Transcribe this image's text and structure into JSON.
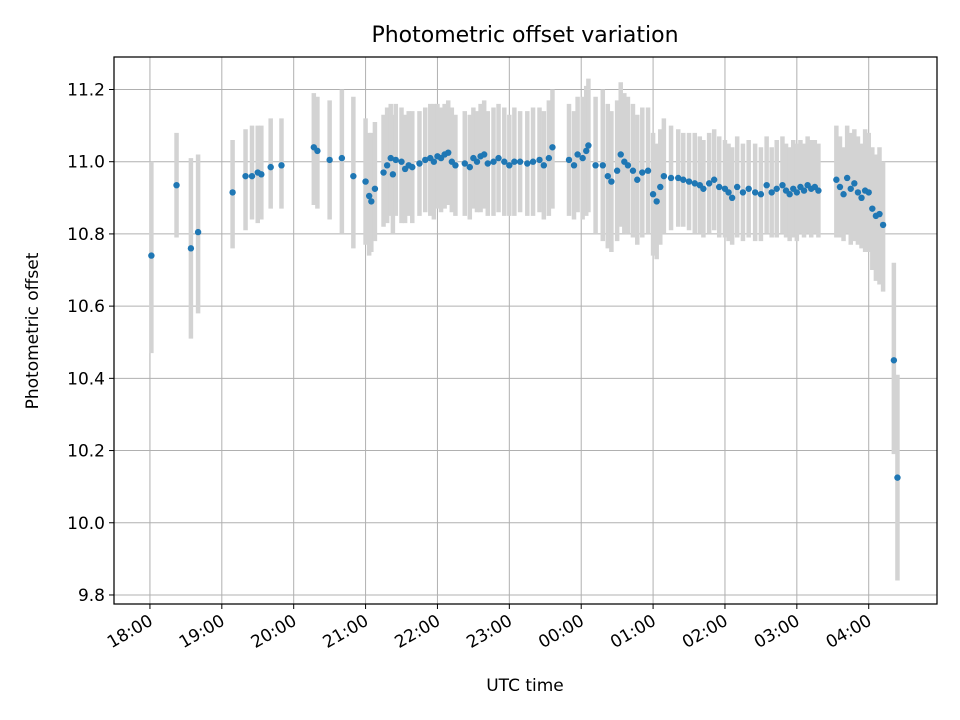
{
  "chart_data": {
    "type": "scatter",
    "title": "Photometric offset variation",
    "xlabel": "UTC time",
    "ylabel": "Photometric offset",
    "x_unit": "hours since 18:00 UTC",
    "xlim": [
      -0.5,
      10.95
    ],
    "ylim": [
      9.775,
      11.29
    ],
    "grid": true,
    "colors": {
      "points": "#1f77b4",
      "errorbars": "#d3d3d3",
      "grid": "#b0b0b0"
    },
    "xticks": [
      {
        "value": 0,
        "label": "18:00"
      },
      {
        "value": 1,
        "label": "19:00"
      },
      {
        "value": 2,
        "label": "20:00"
      },
      {
        "value": 3,
        "label": "21:00"
      },
      {
        "value": 4,
        "label": "22:00"
      },
      {
        "value": 5,
        "label": "23:00"
      },
      {
        "value": 6,
        "label": "00:00"
      },
      {
        "value": 7,
        "label": "01:00"
      },
      {
        "value": 8,
        "label": "02:00"
      },
      {
        "value": 9,
        "label": "03:00"
      },
      {
        "value": 10,
        "label": "04:00"
      }
    ],
    "yticks": [
      {
        "value": 9.8,
        "label": "9.8"
      },
      {
        "value": 10.0,
        "label": "10.0"
      },
      {
        "value": 10.2,
        "label": "10.2"
      },
      {
        "value": 10.4,
        "label": "10.4"
      },
      {
        "value": 10.6,
        "label": "10.6"
      },
      {
        "value": 10.8,
        "label": "10.8"
      },
      {
        "value": 11.0,
        "label": "11.0"
      },
      {
        "value": 11.2,
        "label": "11.2"
      }
    ],
    "points": [
      [
        0.02,
        10.74,
        10.47,
        11.0
      ],
      [
        0.37,
        10.935,
        10.79,
        11.08
      ],
      [
        0.57,
        10.76,
        10.51,
        11.01
      ],
      [
        0.67,
        10.805,
        10.58,
        11.02
      ],
      [
        1.15,
        10.915,
        10.76,
        11.06
      ],
      [
        1.33,
        10.96,
        10.81,
        11.09
      ],
      [
        1.42,
        10.96,
        10.84,
        11.1
      ],
      [
        1.5,
        10.97,
        10.83,
        11.1
      ],
      [
        1.55,
        10.965,
        10.84,
        11.1
      ],
      [
        1.68,
        10.985,
        10.87,
        11.12
      ],
      [
        1.83,
        10.99,
        10.87,
        11.12
      ],
      [
        2.28,
        11.04,
        10.88,
        11.19
      ],
      [
        2.33,
        11.03,
        10.87,
        11.18
      ],
      [
        2.5,
        11.005,
        10.84,
        11.17
      ],
      [
        2.67,
        11.01,
        10.8,
        11.2
      ],
      [
        2.83,
        10.96,
        10.76,
        11.18
      ],
      [
        3.0,
        10.945,
        10.77,
        11.12
      ],
      [
        3.05,
        10.905,
        10.74,
        11.08
      ],
      [
        3.08,
        10.89,
        10.75,
        11.08
      ],
      [
        3.13,
        10.925,
        10.78,
        11.11
      ],
      [
        3.25,
        10.97,
        10.82,
        11.13
      ],
      [
        3.3,
        10.99,
        10.83,
        11.15
      ],
      [
        3.35,
        11.01,
        10.85,
        11.16
      ],
      [
        3.38,
        10.965,
        10.8,
        11.13
      ],
      [
        3.42,
        11.005,
        10.85,
        11.16
      ],
      [
        3.5,
        11.0,
        10.83,
        11.15
      ],
      [
        3.55,
        10.98,
        10.83,
        11.13
      ],
      [
        3.6,
        10.99,
        10.85,
        11.14
      ],
      [
        3.65,
        10.985,
        10.83,
        11.14
      ],
      [
        3.75,
        10.995,
        10.85,
        11.14
      ],
      [
        3.83,
        11.005,
        10.86,
        11.15
      ],
      [
        3.9,
        11.01,
        10.85,
        11.16
      ],
      [
        3.95,
        11.0,
        10.84,
        11.16
      ],
      [
        4.0,
        11.015,
        10.87,
        11.16
      ],
      [
        4.05,
        11.01,
        10.86,
        11.15
      ],
      [
        4.1,
        11.02,
        10.87,
        11.16
      ],
      [
        4.15,
        11.025,
        10.88,
        11.17
      ],
      [
        4.2,
        11.0,
        10.86,
        11.15
      ],
      [
        4.25,
        10.99,
        10.85,
        11.13
      ],
      [
        4.38,
        10.995,
        10.85,
        11.14
      ],
      [
        4.45,
        10.985,
        10.84,
        11.13
      ],
      [
        4.5,
        11.01,
        10.87,
        11.15
      ],
      [
        4.55,
        11.0,
        10.86,
        11.14
      ],
      [
        4.6,
        11.015,
        10.86,
        11.16
      ],
      [
        4.65,
        11.02,
        10.87,
        11.17
      ],
      [
        4.7,
        10.995,
        10.85,
        11.14
      ],
      [
        4.78,
        11.0,
        10.85,
        11.15
      ],
      [
        4.85,
        11.01,
        10.86,
        11.16
      ],
      [
        4.93,
        11.0,
        10.85,
        11.15
      ],
      [
        5.0,
        10.99,
        10.85,
        11.13
      ],
      [
        5.07,
        11.0,
        10.85,
        11.15
      ],
      [
        5.15,
        11.0,
        10.86,
        11.14
      ],
      [
        5.25,
        10.995,
        10.85,
        11.14
      ],
      [
        5.33,
        11.0,
        10.85,
        11.15
      ],
      [
        5.42,
        11.005,
        10.86,
        11.15
      ],
      [
        5.48,
        10.99,
        10.84,
        11.14
      ],
      [
        5.55,
        11.01,
        10.85,
        11.17
      ],
      [
        5.6,
        11.04,
        10.87,
        11.2
      ],
      [
        5.83,
        11.005,
        10.85,
        11.16
      ],
      [
        5.9,
        10.99,
        10.84,
        11.14
      ],
      [
        5.95,
        11.02,
        10.86,
        11.18
      ],
      [
        6.02,
        11.01,
        10.84,
        11.18
      ],
      [
        6.07,
        11.03,
        10.85,
        11.21
      ],
      [
        6.1,
        11.045,
        10.86,
        11.23
      ],
      [
        6.2,
        10.99,
        10.8,
        11.18
      ],
      [
        6.3,
        10.99,
        10.78,
        11.2
      ],
      [
        6.37,
        10.96,
        10.76,
        11.16
      ],
      [
        6.42,
        10.945,
        10.75,
        11.14
      ],
      [
        6.5,
        10.975,
        10.78,
        11.17
      ],
      [
        6.55,
        11.02,
        10.82,
        11.22
      ],
      [
        6.6,
        11.0,
        10.8,
        11.19
      ],
      [
        6.65,
        10.99,
        10.8,
        11.18
      ],
      [
        6.72,
        10.975,
        10.79,
        11.16
      ],
      [
        6.78,
        10.95,
        10.77,
        11.13
      ],
      [
        6.85,
        10.97,
        10.79,
        11.15
      ],
      [
        6.93,
        10.975,
        10.8,
        11.15
      ],
      [
        7.0,
        10.91,
        10.74,
        11.08
      ],
      [
        7.05,
        10.89,
        10.73,
        11.05
      ],
      [
        7.1,
        10.93,
        10.77,
        11.09
      ],
      [
        7.15,
        10.96,
        10.8,
        11.12
      ],
      [
        7.25,
        10.955,
        10.81,
        11.1
      ],
      [
        7.35,
        10.955,
        10.82,
        11.09
      ],
      [
        7.42,
        10.95,
        10.82,
        11.08
      ],
      [
        7.5,
        10.945,
        10.81,
        11.08
      ],
      [
        7.58,
        10.94,
        10.8,
        11.08
      ],
      [
        7.65,
        10.935,
        10.8,
        11.07
      ],
      [
        7.7,
        10.925,
        10.79,
        11.06
      ],
      [
        7.78,
        10.94,
        10.8,
        11.08
      ],
      [
        7.85,
        10.95,
        10.81,
        11.09
      ],
      [
        7.92,
        10.93,
        10.79,
        11.07
      ],
      [
        8.0,
        10.925,
        10.79,
        11.06
      ],
      [
        8.05,
        10.915,
        10.78,
        11.05
      ],
      [
        8.1,
        10.9,
        10.77,
        11.04
      ],
      [
        8.17,
        10.93,
        10.79,
        11.07
      ],
      [
        8.25,
        10.915,
        10.78,
        11.05
      ],
      [
        8.33,
        10.925,
        10.79,
        11.06
      ],
      [
        8.42,
        10.915,
        10.78,
        11.05
      ],
      [
        8.5,
        10.91,
        10.78,
        11.04
      ],
      [
        8.58,
        10.935,
        10.8,
        11.07
      ],
      [
        8.65,
        10.915,
        10.79,
        11.04
      ],
      [
        8.72,
        10.925,
        10.79,
        11.06
      ],
      [
        8.8,
        10.935,
        10.8,
        11.07
      ],
      [
        8.85,
        10.92,
        10.79,
        11.05
      ],
      [
        8.9,
        10.91,
        10.78,
        11.04
      ],
      [
        8.95,
        10.925,
        10.79,
        11.06
      ],
      [
        9.0,
        10.915,
        10.78,
        11.05
      ],
      [
        9.05,
        10.93,
        10.8,
        11.06
      ],
      [
        9.1,
        10.92,
        10.79,
        11.05
      ],
      [
        9.15,
        10.935,
        10.8,
        11.07
      ],
      [
        9.2,
        10.925,
        10.79,
        11.06
      ],
      [
        9.25,
        10.93,
        10.8,
        11.06
      ],
      [
        9.3,
        10.92,
        10.79,
        11.05
      ],
      [
        9.55,
        10.95,
        10.79,
        11.1
      ],
      [
        9.6,
        10.93,
        10.79,
        11.07
      ],
      [
        9.65,
        10.91,
        10.78,
        11.04
      ],
      [
        9.7,
        10.955,
        10.8,
        11.1
      ],
      [
        9.75,
        10.925,
        10.77,
        11.08
      ],
      [
        9.8,
        10.94,
        10.78,
        11.09
      ],
      [
        9.85,
        10.915,
        10.77,
        11.07
      ],
      [
        9.9,
        10.9,
        10.76,
        11.05
      ],
      [
        9.95,
        10.92,
        10.75,
        11.09
      ],
      [
        10.0,
        10.915,
        10.75,
        11.08
      ],
      [
        10.05,
        10.87,
        10.7,
        11.04
      ],
      [
        10.1,
        10.85,
        10.67,
        11.02
      ],
      [
        10.15,
        10.855,
        10.66,
        11.04
      ],
      [
        10.2,
        10.825,
        10.64,
        11.0
      ],
      [
        10.35,
        10.45,
        10.19,
        10.72
      ],
      [
        10.4,
        10.125,
        9.84,
        10.41
      ]
    ]
  }
}
